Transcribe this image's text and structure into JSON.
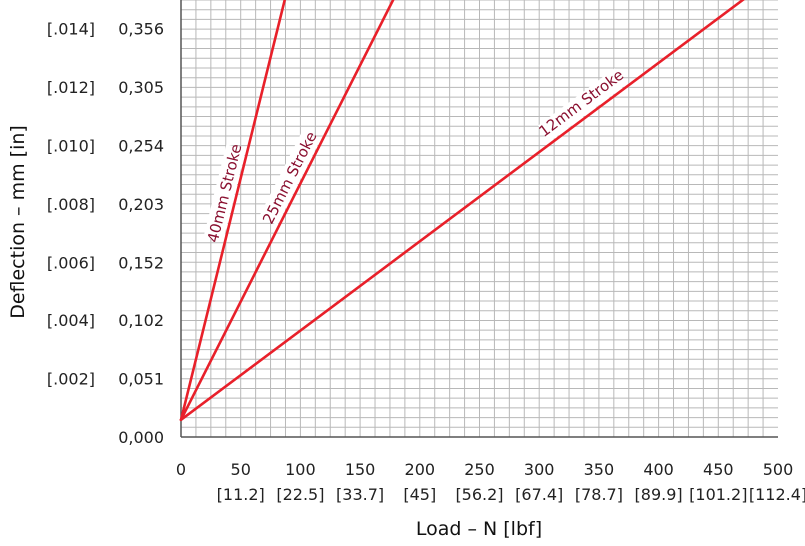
{
  "chart_data": {
    "type": "line",
    "title": "",
    "xlabel": "Load – N [lbf]",
    "ylabel": "Deflection – mm [in]",
    "xlim": [
      0,
      500
    ],
    "ylim": [
      0,
      0.381
    ],
    "grid": true,
    "x_ticks": [
      {
        "value": 0,
        "label": "0",
        "label2": ""
      },
      {
        "value": 50,
        "label": "50",
        "label2": "[11.2]"
      },
      {
        "value": 100,
        "label": "100",
        "label2": "[22.5]"
      },
      {
        "value": 150,
        "label": "150",
        "label2": "[33.7]"
      },
      {
        "value": 200,
        "label": "200",
        "label2": "[45]"
      },
      {
        "value": 250,
        "label": "250",
        "label2": "[56.2]"
      },
      {
        "value": 300,
        "label": "300",
        "label2": "[67.4]"
      },
      {
        "value": 350,
        "label": "350",
        "label2": "[78.7]"
      },
      {
        "value": 400,
        "label": "400",
        "label2": "[89.9]"
      },
      {
        "value": 450,
        "label": "450",
        "label2": "[101.2]"
      },
      {
        "value": 500,
        "label": "500",
        "label2": "[112.4]"
      }
    ],
    "y_ticks": [
      {
        "value": 0,
        "label": "0,000",
        "label2": ""
      },
      {
        "value": 0.051,
        "label": "0,051",
        "label2": "[.002]"
      },
      {
        "value": 0.102,
        "label": "0,102",
        "label2": "[.004]"
      },
      {
        "value": 0.152,
        "label": "0,152",
        "label2": "[.006]"
      },
      {
        "value": 0.203,
        "label": "0,203",
        "label2": "[.008]"
      },
      {
        "value": 0.254,
        "label": "0,254",
        "label2": "[.010]"
      },
      {
        "value": 0.305,
        "label": "0,305",
        "label2": "[.012]"
      },
      {
        "value": 0.356,
        "label": "0,356",
        "label2": "[.014]"
      }
    ],
    "series": [
      {
        "name": "40mm Stroke",
        "color": "#e8202a",
        "points": [
          [
            0,
            0.015
          ],
          [
            89,
            0.39
          ]
        ]
      },
      {
        "name": "25mm Stroke",
        "color": "#e8202a",
        "points": [
          [
            0,
            0.015
          ],
          [
            182,
            0.39
          ]
        ]
      },
      {
        "name": "12mm Stroke",
        "color": "#e8202a",
        "points": [
          [
            0,
            0.015
          ],
          [
            482,
            0.39
          ]
        ]
      }
    ]
  }
}
